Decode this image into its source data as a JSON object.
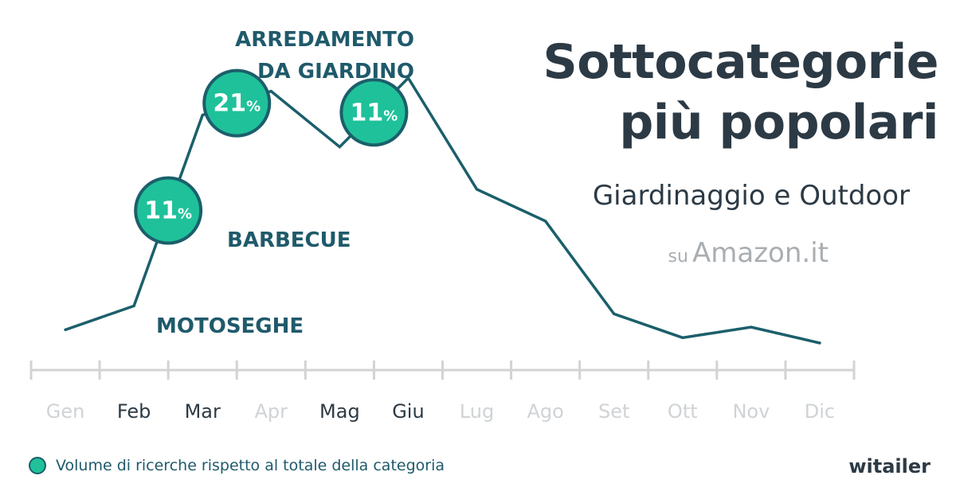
{
  "header": {
    "title_line1": "Sottocategorie",
    "title_line2": "più popolari",
    "subtitle": "Giardinaggio e Outdoor",
    "source_prefix": "su",
    "source_site": "Amazon.it"
  },
  "legend": {
    "label": "Volume di ricerche rispetto al totale della categoria"
  },
  "brand": "witailer",
  "colors": {
    "line": "#1b5f6b",
    "bubble_fill": "#1fc19a",
    "label": "#1f5a6b",
    "axis": "#d3d3d3",
    "month_active": "#2c3a45",
    "month_inactive": "#cfd3d6"
  },
  "chart_data": {
    "type": "line",
    "title": "",
    "xlabel": "",
    "ylabel": "",
    "categories": [
      "Gen",
      "Feb",
      "Mar",
      "Apr",
      "Mag",
      "Giu",
      "Lug",
      "Ago",
      "Set",
      "Ott",
      "Nov",
      "Dic"
    ],
    "highlighted_months": [
      "Feb",
      "Mar",
      "Mag",
      "Giu"
    ],
    "series": [
      {
        "values": [
          0.05,
          0.14,
          0.86,
          0.95,
          0.74,
          1.0,
          0.58,
          0.46,
          0.11,
          0.02,
          0.06,
          0.0
        ]
      }
    ],
    "ylim": [
      0,
      1
    ],
    "grid": false,
    "annotations": [
      {
        "month": "Feb",
        "percent": "11",
        "unit": "%",
        "label_lines": [
          "MOTOSEGHE"
        ]
      },
      {
        "month": "Mar",
        "percent": "21",
        "unit": "%",
        "label_lines": [
          "BARBECUE"
        ]
      },
      {
        "month": "Mag",
        "percent": "11",
        "unit": "%",
        "label_lines": [
          "ARREDAMENTO",
          "DA GIARDINO"
        ]
      }
    ]
  }
}
